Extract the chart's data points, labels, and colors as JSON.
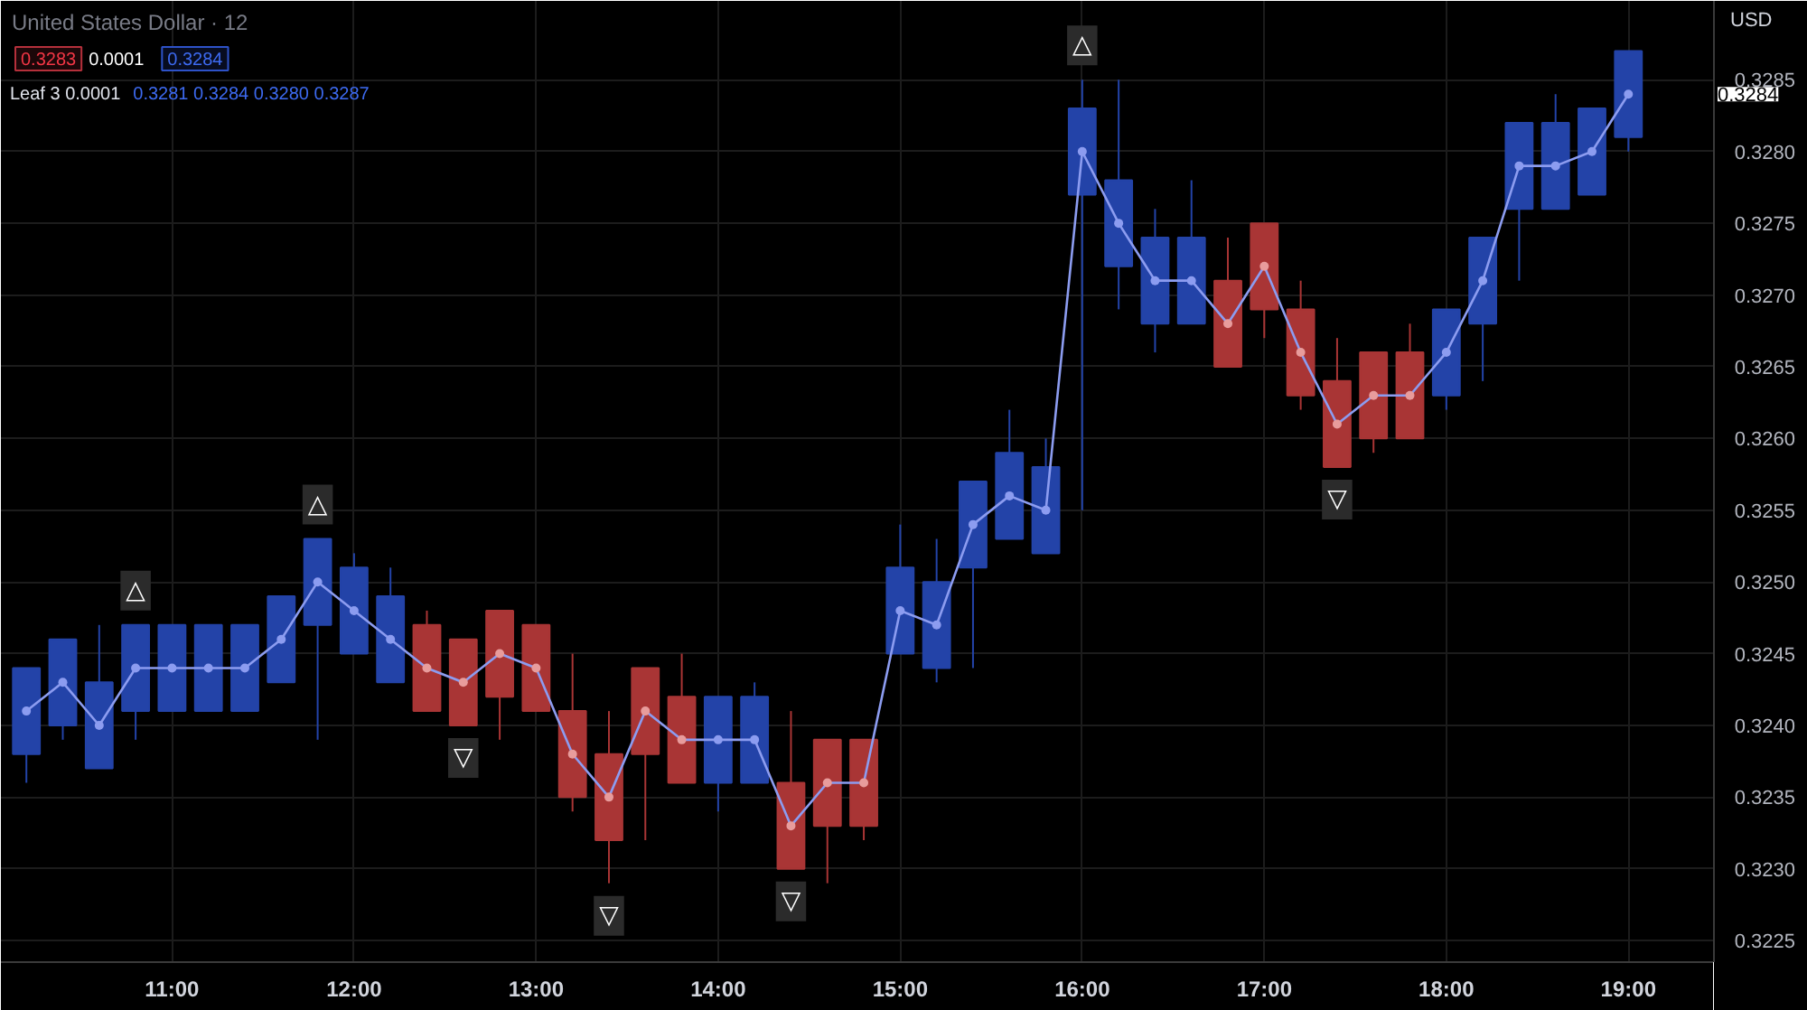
{
  "chart_data": {
    "type": "candlestick",
    "title": "United States Dollar · 12",
    "ylabel": "USD",
    "x": [
      10.2,
      10.4,
      10.6,
      10.8,
      11.0,
      11.2,
      11.4,
      11.6,
      11.8,
      12.0,
      12.2,
      12.4,
      12.6,
      12.8,
      13.0,
      13.2,
      13.4,
      13.6,
      13.8,
      14.0,
      14.2,
      14.4,
      14.6,
      14.8,
      15.0,
      15.2,
      15.4,
      15.6,
      15.8,
      16.0,
      16.2,
      16.4,
      16.6,
      16.8,
      17.0,
      17.2,
      17.4,
      17.6,
      17.8,
      18.0,
      18.2,
      18.4,
      18.6,
      18.8,
      19.0
    ],
    "ohlc": [
      [
        0.3238,
        0.3244,
        0.3236,
        0.3244
      ],
      [
        0.324,
        0.3246,
        0.3239,
        0.3246
      ],
      [
        0.3237,
        0.3247,
        0.3237,
        0.3243
      ],
      [
        0.3241,
        0.3247,
        0.3239,
        0.3247
      ],
      [
        0.3241,
        0.3247,
        0.3241,
        0.3247
      ],
      [
        0.3241,
        0.3247,
        0.3241,
        0.3247
      ],
      [
        0.3241,
        0.3247,
        0.3241,
        0.3247
      ],
      [
        0.3243,
        0.3249,
        0.3243,
        0.3249
      ],
      [
        0.3247,
        0.3253,
        0.3239,
        0.3253
      ],
      [
        0.3245,
        0.3252,
        0.3245,
        0.3251
      ],
      [
        0.3243,
        0.3251,
        0.3243,
        0.3249
      ],
      [
        0.3247,
        0.3248,
        0.3241,
        0.3241
      ],
      [
        0.3246,
        0.3246,
        0.324,
        0.324
      ],
      [
        0.3248,
        0.3248,
        0.3239,
        0.3242
      ],
      [
        0.3247,
        0.3247,
        0.3241,
        0.3241
      ],
      [
        0.3241,
        0.3245,
        0.3234,
        0.3235
      ],
      [
        0.3238,
        0.3241,
        0.3229,
        0.3232
      ],
      [
        0.3244,
        0.3244,
        0.3232,
        0.3238
      ],
      [
        0.3242,
        0.3245,
        0.3236,
        0.3236
      ],
      [
        0.3236,
        0.3242,
        0.3234,
        0.3242
      ],
      [
        0.3236,
        0.3243,
        0.3236,
        0.3242
      ],
      [
        0.3236,
        0.3241,
        0.323,
        0.323
      ],
      [
        0.3239,
        0.3239,
        0.3229,
        0.3233
      ],
      [
        0.3239,
        0.3239,
        0.3232,
        0.3233
      ],
      [
        0.3245,
        0.3254,
        0.3245,
        0.3251
      ],
      [
        0.3244,
        0.3253,
        0.3243,
        0.325
      ],
      [
        0.3251,
        0.3257,
        0.3244,
        0.3257
      ],
      [
        0.3253,
        0.3262,
        0.3253,
        0.3259
      ],
      [
        0.3252,
        0.326,
        0.3252,
        0.3258
      ],
      [
        0.3277,
        0.3285,
        0.3255,
        0.3283
      ],
      [
        0.3272,
        0.3285,
        0.3269,
        0.3278
      ],
      [
        0.3268,
        0.3276,
        0.3266,
        0.3274
      ],
      [
        0.3268,
        0.3278,
        0.3268,
        0.3274
      ],
      [
        0.3271,
        0.3274,
        0.3265,
        0.3265
      ],
      [
        0.3275,
        0.3275,
        0.3267,
        0.3269
      ],
      [
        0.3269,
        0.3271,
        0.3262,
        0.3263
      ],
      [
        0.3264,
        0.3267,
        0.3258,
        0.3258
      ],
      [
        0.3266,
        0.3266,
        0.3259,
        0.326
      ],
      [
        0.3266,
        0.3268,
        0.326,
        0.326
      ],
      [
        0.3263,
        0.3269,
        0.3262,
        0.3269
      ],
      [
        0.3268,
        0.3274,
        0.3264,
        0.3274
      ],
      [
        0.3276,
        0.3282,
        0.3271,
        0.3282
      ],
      [
        0.3276,
        0.3284,
        0.3276,
        0.3282
      ],
      [
        0.3277,
        0.3283,
        0.3277,
        0.3283
      ],
      [
        0.3281,
        0.3287,
        0.328,
        0.3287
      ]
    ],
    "colors": [
      "#2343a8",
      "#2343a8",
      "#2343a8",
      "#2343a8",
      "#2343a8",
      "#2343a8",
      "#2343a8",
      "#2343a8",
      "#2343a8",
      "#2343a8",
      "#2343a8",
      "#a93535",
      "#a93535",
      "#a93535",
      "#a93535",
      "#a93535",
      "#a93535",
      "#a93535",
      "#a93535",
      "#2343a8",
      "#2343a8",
      "#a93535",
      "#a93535",
      "#a93535",
      "#2343a8",
      "#2343a8",
      "#2343a8",
      "#2343a8",
      "#2343a8",
      "#2343a8",
      "#2343a8",
      "#2343a8",
      "#2343a8",
      "#a93535",
      "#a93535",
      "#a93535",
      "#a93535",
      "#a93535",
      "#a93535",
      "#2343a8",
      "#2343a8",
      "#2343a8",
      "#2343a8",
      "#2343a8",
      "#2343a8"
    ],
    "series": [
      {
        "type": "line",
        "color": "#8c9cf0",
        "marker": "circle",
        "x": [
          10.2,
          10.4,
          10.6,
          10.8,
          11.0,
          11.2,
          11.4,
          11.6,
          11.8,
          12.0,
          12.2,
          12.4,
          12.6,
          12.8,
          13.0,
          13.2,
          13.4,
          13.6,
          13.8,
          14.0,
          14.2,
          14.4,
          14.6,
          14.8,
          15.0,
          15.2,
          15.4,
          15.6,
          15.8,
          16.0,
          16.2,
          16.4,
          16.6,
          16.8,
          17.0,
          17.2,
          17.4,
          17.6,
          17.8,
          18.0,
          18.2,
          18.4,
          18.6,
          18.8,
          19.0
        ],
        "values": [
          0.3241,
          0.3243,
          0.324,
          0.3244,
          0.3244,
          0.3244,
          0.3244,
          0.3246,
          0.325,
          0.3248,
          0.3246,
          0.3244,
          0.3243,
          0.3245,
          0.3244,
          0.3238,
          0.3235,
          0.3241,
          0.3239,
          0.3239,
          0.3239,
          0.3233,
          0.3236,
          0.3236,
          0.3248,
          0.3247,
          0.3254,
          0.3256,
          0.3255,
          0.328,
          0.3275,
          0.3271,
          0.3271,
          0.3268,
          0.3272,
          0.3266,
          0.3261,
          0.3263,
          0.3263,
          0.3266,
          0.3271,
          0.3279,
          0.3279,
          0.328,
          0.3284
        ],
        "colors": [
          "#8c9cf0",
          "#8c9cf0",
          "#8c9cf0",
          "#8c9cf0",
          "#8c9cf0",
          "#8c9cf0",
          "#8c9cf0",
          "#8c9cf0",
          "#8c9cf0",
          "#8c9cf0",
          "#8c9cf0",
          "#e89c9c",
          "#e89c9c",
          "#e89c9c",
          "#e89c9c",
          "#e89c9c",
          "#e89c9c",
          "#e89c9c",
          "#e89c9c",
          "#8c9cf0",
          "#8c9cf0",
          "#e89c9c",
          "#e89c9c",
          "#e89c9c",
          "#8c9cf0",
          "#8c9cf0",
          "#8c9cf0",
          "#8c9cf0",
          "#8c9cf0",
          "#8c9cf0",
          "#8c9cf0",
          "#8c9cf0",
          "#8c9cf0",
          "#e89c9c",
          "#e89c9c",
          "#e89c9c",
          "#e89c9c",
          "#e89c9c",
          "#e89c9c",
          "#8c9cf0",
          "#8c9cf0",
          "#8c9cf0",
          "#8c9cf0",
          "#8c9cf0",
          "#8c9cf0"
        ]
      }
    ],
    "xlim": [
      10.06,
      19.47
    ],
    "ylim": [
      0.32235,
      0.32905
    ],
    "xticks": [
      {
        "value": 11,
        "label": "11:00"
      },
      {
        "value": 12,
        "label": "12:00"
      },
      {
        "value": 13,
        "label": "13:00"
      },
      {
        "value": 14,
        "label": "14:00"
      },
      {
        "value": 15,
        "label": "15:00"
      },
      {
        "value": 16,
        "label": "16:00"
      },
      {
        "value": 17,
        "label": "17:00"
      },
      {
        "value": 18,
        "label": "18:00"
      },
      {
        "value": 19,
        "label": "19:00"
      }
    ],
    "yticks": [
      0.3225,
      {
        "value": 0.323,
        "label": "0.3230"
      },
      0.3235,
      {
        "value": 0.324,
        "label": "0.3240"
      },
      0.3245,
      {
        "value": 0.325,
        "label": "0.3250"
      },
      0.3255,
      {
        "value": 0.326,
        "label": "0.3260"
      },
      0.3265,
      {
        "value": 0.327,
        "label": "0.3270"
      },
      0.3275,
      {
        "value": 0.328,
        "label": "0.3280"
      },
      0.3285
    ],
    "grid": true,
    "annotations": [
      "0.3283",
      "0.0001",
      "0.3284",
      "Leaf 3 0.0001",
      "0.3281 0.3284 0.3280 0.3287",
      "0.3284",
      {
        "text": "△",
        "x": 10.8,
        "y": 0.3247
      },
      {
        "text": "△",
        "x": 11.8,
        "y": 0.3253
      },
      {
        "text": "△",
        "x": 16.0,
        "y": 0.3285
      },
      {
        "text": "▽",
        "x": 12.6,
        "y": 0.324
      },
      {
        "text": "▽",
        "x": 13.4,
        "y": 0.3229
      },
      {
        "text": "▽",
        "x": 14.4,
        "y": 0.323
      },
      {
        "text": "▽",
        "x": 17.4,
        "y": 0.3258
      }
    ]
  }
}
